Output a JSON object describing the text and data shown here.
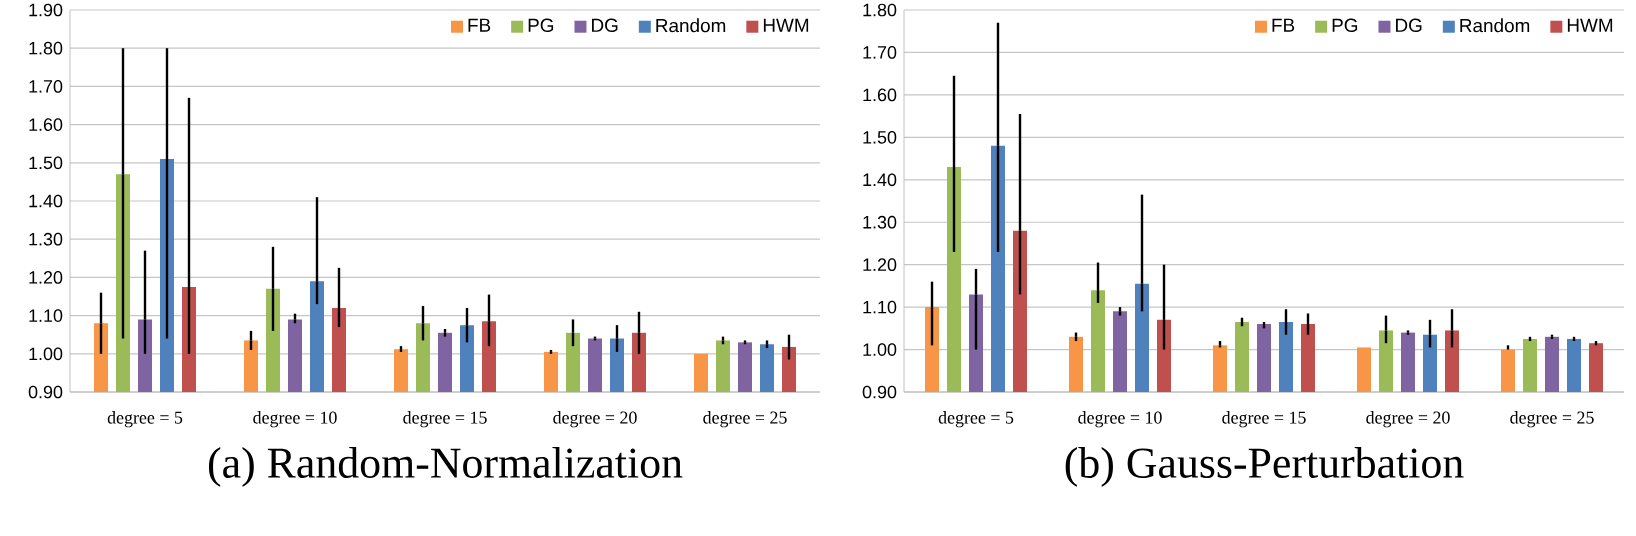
{
  "chart_data": [
    {
      "type": "bar",
      "title": "(a) Random-Normalization",
      "categories": [
        "degree = 5",
        "degree = 10",
        "degree = 15",
        "degree = 20",
        "degree = 25"
      ],
      "series": [
        {
          "name": "FB",
          "color": "#f79646",
          "values": [
            1.08,
            1.035,
            1.012,
            1.005,
            1.0
          ],
          "errors": [
            [
              1.0,
              1.16
            ],
            [
              1.01,
              1.06
            ],
            [
              1.005,
              1.02
            ],
            [
              1.0,
              1.01
            ],
            null
          ]
        },
        {
          "name": "PG",
          "color": "#9bbb59",
          "values": [
            1.47,
            1.17,
            1.08,
            1.055,
            1.035
          ],
          "errors": [
            [
              1.04,
              1.8
            ],
            [
              1.06,
              1.28
            ],
            [
              1.035,
              1.125
            ],
            [
              1.02,
              1.09
            ],
            [
              1.025,
              1.045
            ]
          ]
        },
        {
          "name": "DG",
          "color": "#8064a2",
          "values": [
            1.09,
            1.09,
            1.055,
            1.04,
            1.03
          ],
          "errors": [
            [
              1.0,
              1.27
            ],
            [
              1.08,
              1.105
            ],
            [
              1.045,
              1.065
            ],
            [
              1.035,
              1.045
            ],
            [
              1.025,
              1.035
            ]
          ]
        },
        {
          "name": "Random",
          "color": "#4f81bd",
          "values": [
            1.51,
            1.19,
            1.075,
            1.04,
            1.025
          ],
          "errors": [
            [
              1.04,
              1.8
            ],
            [
              1.13,
              1.41
            ],
            [
              1.03,
              1.12
            ],
            [
              1.005,
              1.075
            ],
            [
              1.015,
              1.035
            ]
          ]
        },
        {
          "name": "HWM",
          "color": "#c0504d",
          "values": [
            1.175,
            1.12,
            1.085,
            1.055,
            1.018
          ],
          "errors": [
            [
              1.0,
              1.67
            ],
            [
              1.07,
              1.225
            ],
            [
              1.02,
              1.155
            ],
            [
              1.0,
              1.11
            ],
            [
              0.985,
              1.05
            ]
          ]
        }
      ],
      "ylim": [
        0.9,
        1.9
      ],
      "yticks": [
        {
          "value": 0.9,
          "label": "0.90"
        },
        {
          "value": 1.0,
          "label": "1.00"
        },
        {
          "value": 1.1,
          "label": "1.10"
        },
        {
          "value": 1.2,
          "label": "1.20"
        },
        {
          "value": 1.3,
          "label": "1.30"
        },
        {
          "value": 1.4,
          "label": "1.40"
        },
        {
          "value": 1.5,
          "label": "1.50"
        },
        {
          "value": 1.6,
          "label": "1.60"
        },
        {
          "value": 1.7,
          "label": "1.70"
        },
        {
          "value": 1.8,
          "label": "1.80"
        },
        {
          "value": 1.9,
          "label": "1.90"
        }
      ],
      "grid": "y",
      "legend": "top right"
    },
    {
      "type": "bar",
      "title": "(b) Gauss-Perturbation",
      "categories": [
        "degree = 5",
        "degree = 10",
        "degree = 15",
        "degree = 20",
        "degree = 25"
      ],
      "series": [
        {
          "name": "FB",
          "color": "#f79646",
          "values": [
            1.1,
            1.03,
            1.01,
            1.005,
            1.0
          ],
          "errors": [
            [
              1.01,
              1.16
            ],
            [
              1.02,
              1.04
            ],
            [
              1.005,
              1.02
            ],
            null,
            [
              1.0,
              1.01
            ]
          ]
        },
        {
          "name": "PG",
          "color": "#9bbb59",
          "values": [
            1.43,
            1.14,
            1.065,
            1.045,
            1.025
          ],
          "errors": [
            [
              1.23,
              1.645
            ],
            [
              1.11,
              1.205
            ],
            [
              1.055,
              1.075
            ],
            [
              1.015,
              1.08
            ],
            [
              1.02,
              1.03
            ]
          ]
        },
        {
          "name": "DG",
          "color": "#8064a2",
          "values": [
            1.13,
            1.09,
            1.06,
            1.04,
            1.03
          ],
          "errors": [
            [
              1.0,
              1.19
            ],
            [
              1.08,
              1.1
            ],
            [
              1.05,
              1.065
            ],
            [
              1.035,
              1.045
            ],
            [
              1.025,
              1.035
            ]
          ]
        },
        {
          "name": "Random",
          "color": "#4f81bd",
          "values": [
            1.48,
            1.155,
            1.065,
            1.035,
            1.025
          ],
          "errors": [
            [
              1.23,
              1.77
            ],
            [
              1.09,
              1.365
            ],
            [
              1.035,
              1.095
            ],
            [
              1.005,
              1.07
            ],
            [
              1.02,
              1.03
            ]
          ]
        },
        {
          "name": "HWM",
          "color": "#c0504d",
          "values": [
            1.28,
            1.07,
            1.06,
            1.045,
            1.015
          ],
          "errors": [
            [
              1.13,
              1.555
            ],
            [
              1.0,
              1.2
            ],
            [
              1.035,
              1.085
            ],
            [
              1.005,
              1.095
            ],
            [
              1.01,
              1.02
            ]
          ]
        }
      ],
      "ylim": [
        0.9,
        1.8
      ],
      "yticks": [
        {
          "value": 0.9,
          "label": "0.90"
        },
        {
          "value": 1.0,
          "label": "1.00"
        },
        {
          "value": 1.1,
          "label": "1.10"
        },
        {
          "value": 1.2,
          "label": "1.20"
        },
        {
          "value": 1.3,
          "label": "1.30"
        },
        {
          "value": 1.4,
          "label": "1.40"
        },
        {
          "value": 1.5,
          "label": "1.50"
        },
        {
          "value": 1.6,
          "label": "1.60"
        },
        {
          "value": 1.7,
          "label": "1.70"
        },
        {
          "value": 1.8,
          "label": "1.80"
        }
      ],
      "grid": "y",
      "legend": "top right"
    }
  ]
}
